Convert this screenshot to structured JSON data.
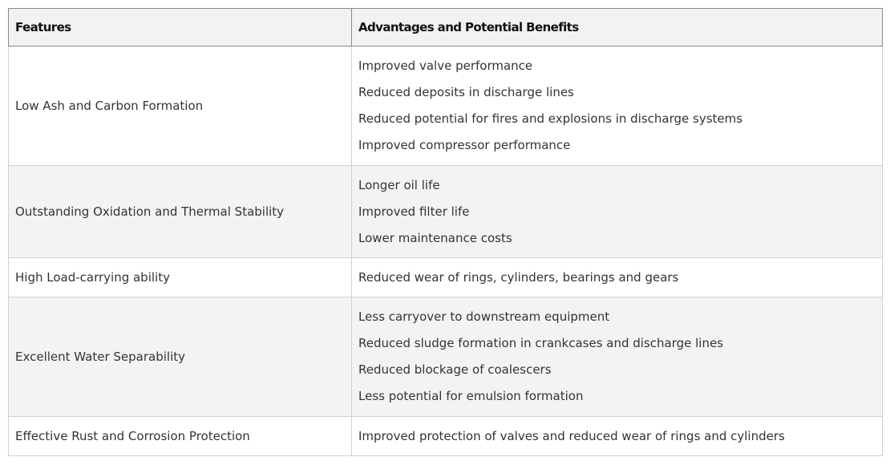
{
  "table": {
    "headers": [
      "Features",
      "Advantages and Potential Benefits"
    ],
    "rows": [
      {
        "feature": "Low Ash and Carbon Formation",
        "benefits": [
          "Improved valve performance",
          "Reduced deposits in discharge lines",
          "Reduced potential for fires and explosions in discharge systems",
          "Improved compressor performance"
        ]
      },
      {
        "feature": "Outstanding Oxidation and Thermal Stability",
        "benefits": [
          "Longer oil life",
          "Improved filter life",
          "Lower maintenance costs"
        ]
      },
      {
        "feature": "High Load-carrying ability",
        "benefits": [
          "Reduced wear of rings, cylinders, bearings and gears"
        ]
      },
      {
        "feature": "Excellent Water Separability",
        "benefits": [
          "Less carryover to downstream equipment",
          "Reduced sludge formation in crankcases and discharge lines",
          "Reduced blockage of coalescers",
          "Less potential for emulsion formation"
        ]
      },
      {
        "feature": "Effective Rust and Corrosion Protection",
        "benefits": [
          "Improved protection of valves and reduced wear of rings and cylinders"
        ]
      }
    ]
  }
}
